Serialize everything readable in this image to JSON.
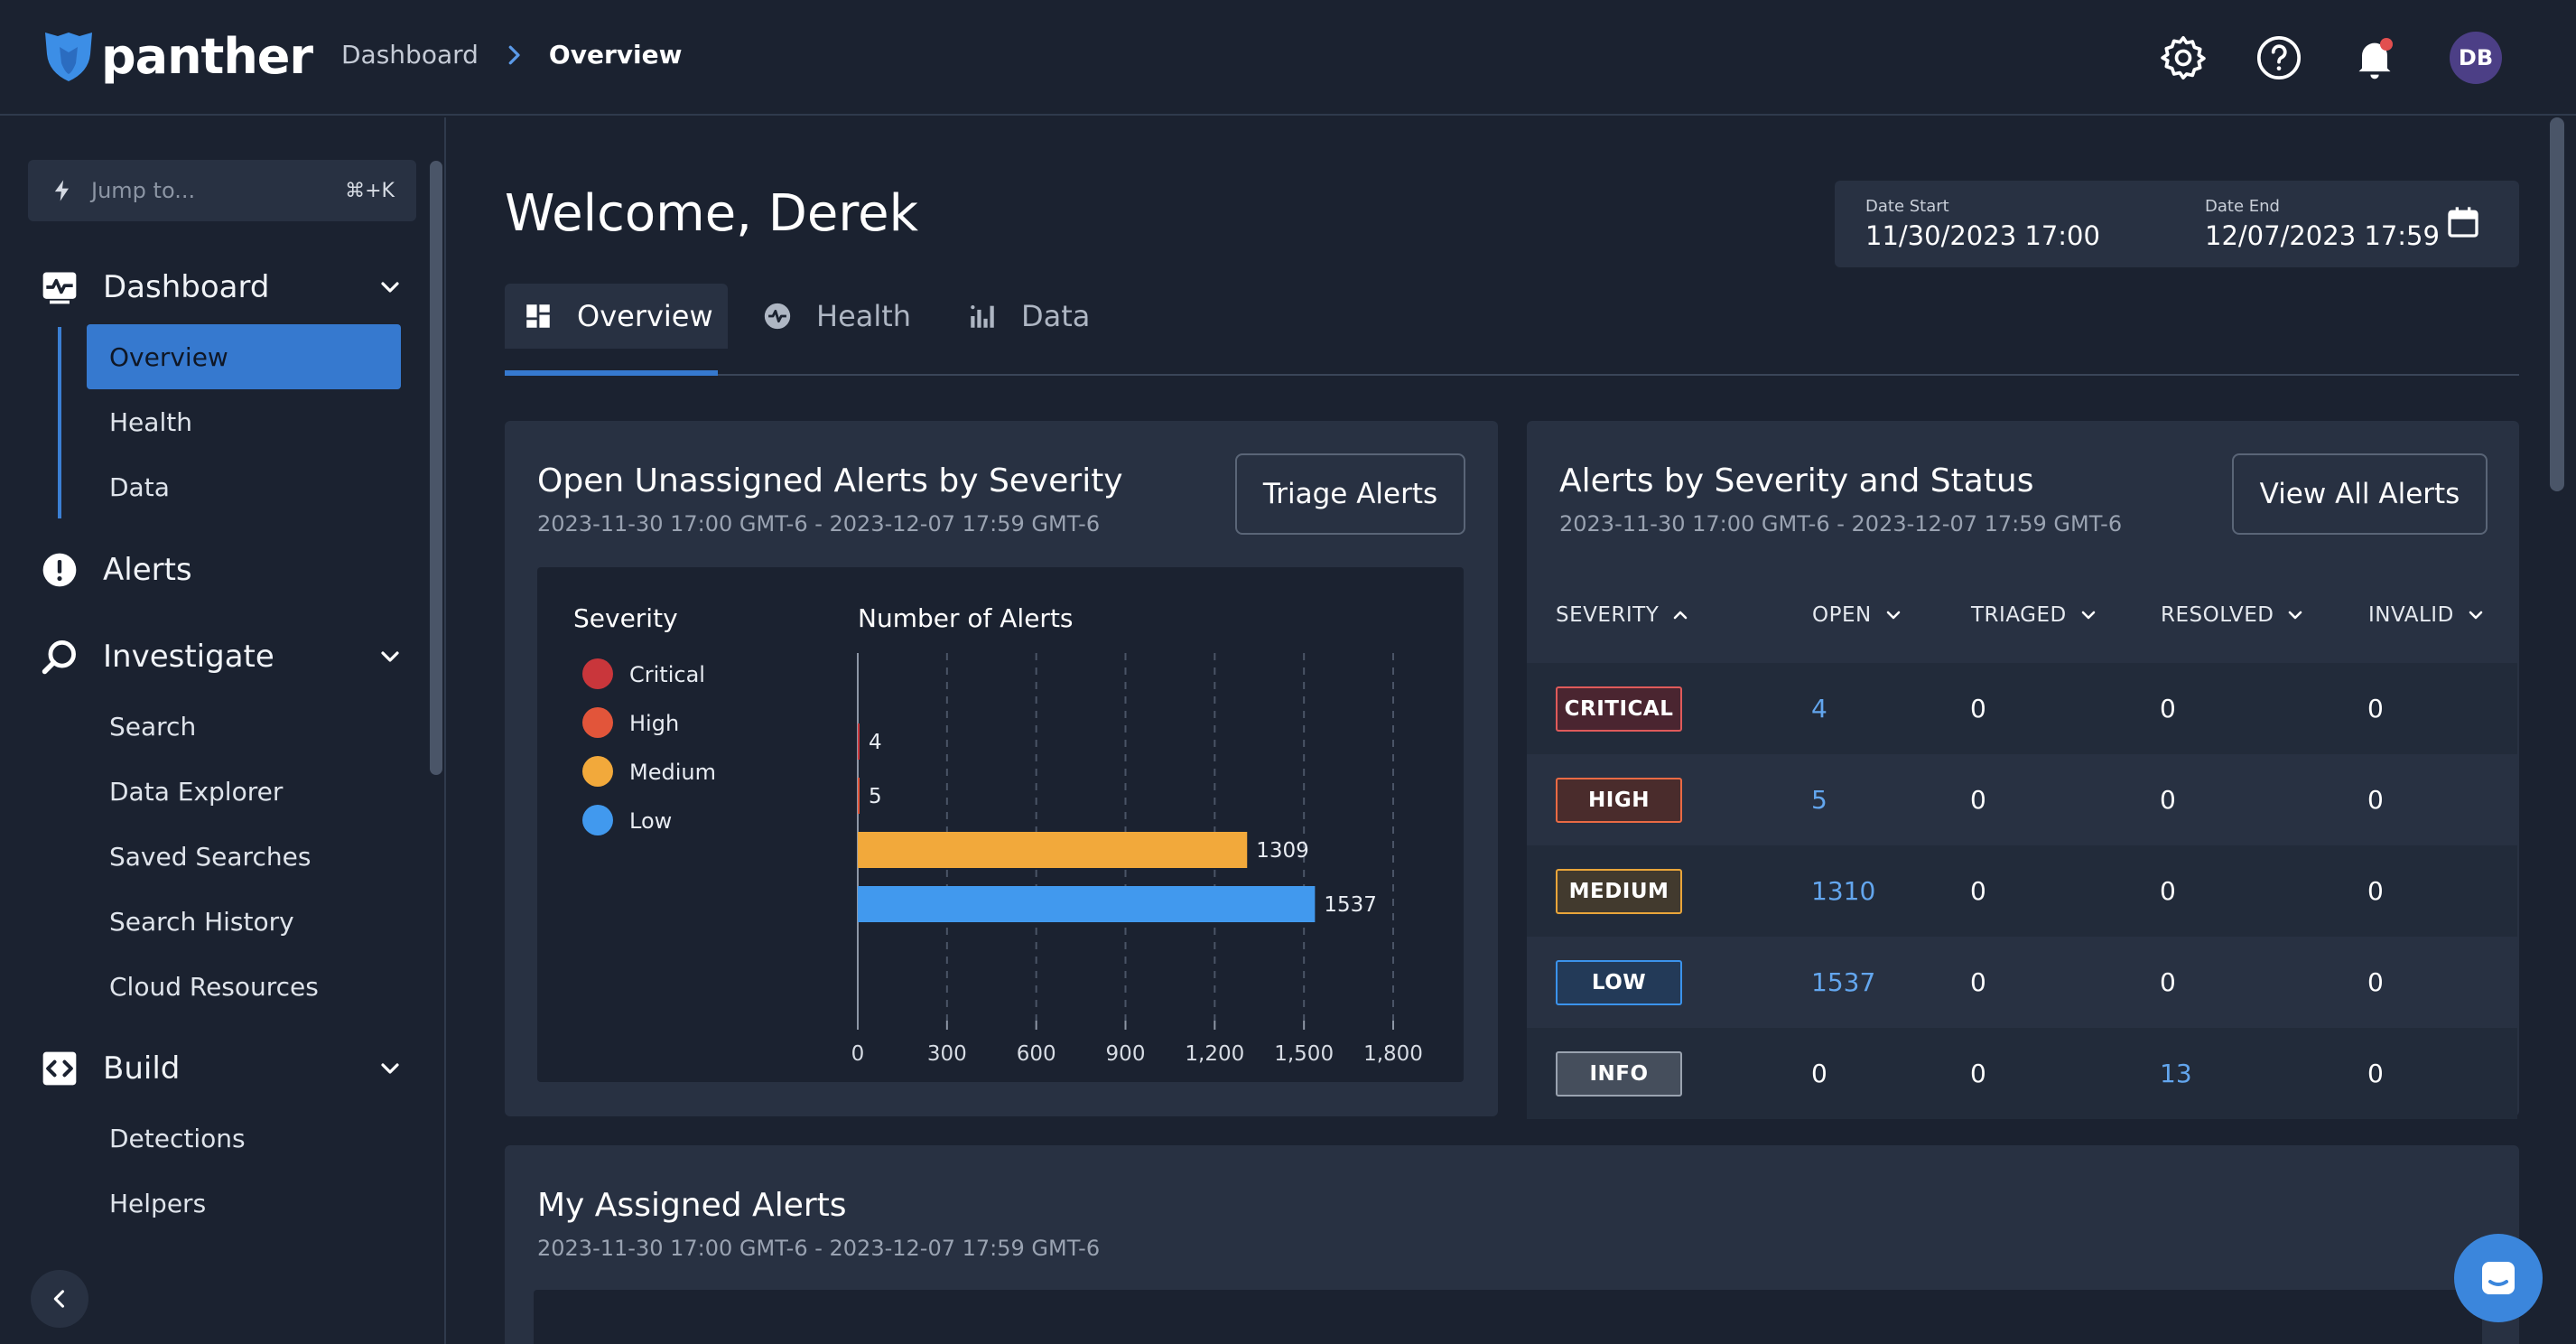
{
  "app": {
    "brand": "panther"
  },
  "breadcrumb": {
    "items": [
      "Dashboard"
    ],
    "current": "Overview"
  },
  "topbar": {
    "icons": [
      "gear-icon",
      "help-icon",
      "bell-icon"
    ],
    "avatar_initials": "DB",
    "notification_dot_color": "#e24f4f"
  },
  "sidebar": {
    "jump": {
      "placeholder": "Jump to...",
      "shortcut": "⌘+K"
    },
    "sections": {
      "dashboard": {
        "label": "Dashboard",
        "items": [
          "Overview",
          "Health",
          "Data"
        ],
        "active": "Overview"
      },
      "alerts": {
        "label": "Alerts"
      },
      "investigate": {
        "label": "Investigate",
        "items": [
          "Search",
          "Data Explorer",
          "Saved Searches",
          "Search History",
          "Cloud Resources"
        ]
      },
      "build": {
        "label": "Build",
        "items": [
          "Detections",
          "Helpers"
        ]
      }
    }
  },
  "main": {
    "welcome": "Welcome, Derek",
    "date_range": {
      "start_label": "Date Start",
      "start_value": "11/30/2023 17:00",
      "end_label": "Date End",
      "end_value": "12/07/2023 17:59"
    },
    "tabs": [
      "Overview",
      "Health",
      "Data"
    ],
    "active_tab": "Overview"
  },
  "cards": {
    "unassigned": {
      "title": "Open Unassigned Alerts by Severity",
      "subtitle": "2023-11-30 17:00 GMT-6 - 2023-12-07 17:59 GMT-6",
      "button": "Triage Alerts"
    },
    "severity_status": {
      "title": "Alerts by Severity and Status",
      "subtitle": "2023-11-30 17:00 GMT-6 - 2023-12-07 17:59 GMT-6",
      "button": "View All Alerts",
      "columns": [
        "SEVERITY",
        "OPEN",
        "TRIAGED",
        "RESOLVED",
        "INVALID"
      ],
      "rows": [
        {
          "severity": "CRITICAL",
          "open": "4",
          "triaged": "0",
          "resolved": "0",
          "invalid": "0",
          "color": "#e05a5a",
          "bg": "#4a2530"
        },
        {
          "severity": "HIGH",
          "open": "5",
          "triaged": "0",
          "resolved": "0",
          "invalid": "0",
          "color": "#ea6a44",
          "bg": "#4a2c2c"
        },
        {
          "severity": "MEDIUM",
          "open": "1310",
          "triaged": "0",
          "resolved": "0",
          "invalid": "0",
          "color": "#e9a53a",
          "bg": "#423a2e"
        },
        {
          "severity": "LOW",
          "open": "1537",
          "triaged": "0",
          "resolved": "0",
          "invalid": "0",
          "color": "#3b93ec",
          "bg": "#233a58"
        },
        {
          "severity": "INFO",
          "open": "0",
          "triaged": "0",
          "resolved": "13",
          "invalid": "0",
          "color": "#9aa3b0",
          "bg": "#454e5c"
        }
      ]
    },
    "assigned": {
      "title": "My Assigned Alerts",
      "subtitle": "2023-11-30 17:00 GMT-6 - 2023-12-07 17:59 GMT-6"
    }
  },
  "chart_data": {
    "type": "bar",
    "orientation": "horizontal",
    "legend_title": "Severity",
    "xlabel": "Number of Alerts",
    "categories": [
      "Critical",
      "High",
      "Medium",
      "Low"
    ],
    "values": [
      4,
      5,
      1309,
      1537
    ],
    "colors": [
      "#c9363b",
      "#e2553a",
      "#f2a93b",
      "#4199ee"
    ],
    "xlim": [
      0,
      1800
    ],
    "xticks": [
      "0",
      "300",
      "600",
      "900",
      "1,200",
      "1,500",
      "1,800"
    ],
    "grid": true,
    "legend_position": "left"
  }
}
